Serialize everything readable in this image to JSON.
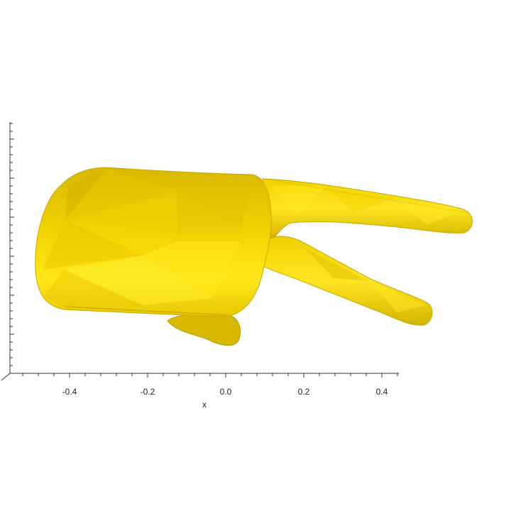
{
  "chart_data": {
    "type": "3d-surface-render",
    "xlabel": "x",
    "x_ticks": [
      -0.4,
      -0.2,
      0.0,
      0.2,
      0.4
    ],
    "x_tick_labels": [
      "-0.4",
      "-0.2",
      "0.0",
      "0.2",
      "0.4"
    ],
    "x_minor_step": 0.04,
    "xlim": [
      -0.56,
      0.44
    ],
    "y_axis_tick_labels_visible": false,
    "grid": false
  },
  "surface": {
    "subject": "hand-peace-sign-mesh",
    "color": "#f5d800",
    "shade_dark": "#c9a800",
    "shade_light": "#fff23a"
  },
  "colors": {
    "axis": "#333333",
    "background": "#ffffff"
  }
}
